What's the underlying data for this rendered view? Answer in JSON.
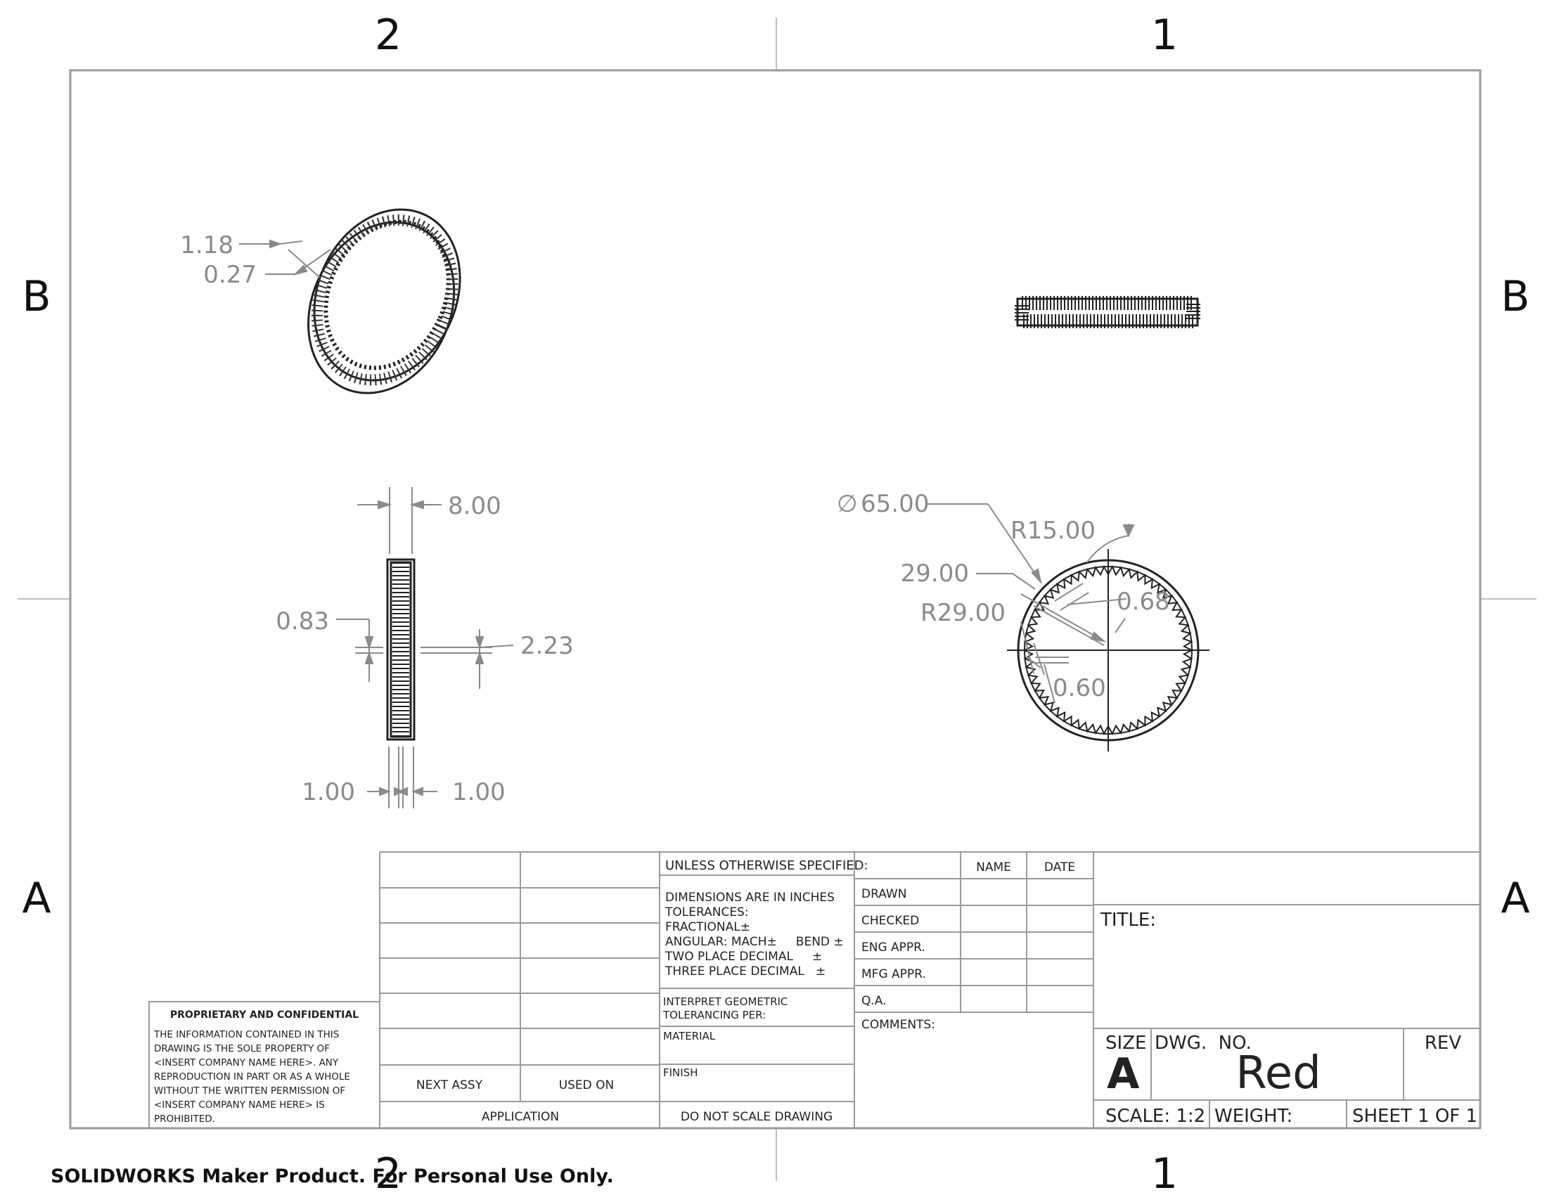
{
  "zones": {
    "col_left": "2",
    "col_right": "1",
    "row_top": "B",
    "row_bottom": "A"
  },
  "dimensions": {
    "iso_a": "1.18",
    "iso_b": "0.27",
    "width_top": "8.00",
    "tooth_left": "0.83",
    "tooth_right": "2.23",
    "bottom_left": "1.00",
    "bottom_right": "1.00",
    "diameter": "65.00",
    "diameter_symbol": "∅",
    "radius_15": "R15.00",
    "len_29": "29.00",
    "radius_29": "R29.00",
    "tooth_068": "0.68",
    "tooth_060": "0.60"
  },
  "title_block": {
    "next_assy": "NEXT ASSY",
    "used_on": "USED ON",
    "application": "APPLICATION",
    "unless": "UNLESS OTHERWISE SPECIFIED:",
    "dims_inches": "DIMENSIONS ARE IN INCHES",
    "tolerances": "TOLERANCES:",
    "fractional": "FRACTIONAL±",
    "angular": "ANGULAR: MACH±     BEND ±",
    "two_place": "TWO PLACE DECIMAL     ±",
    "three_place": "THREE PLACE DECIMAL   ±",
    "interpret": "INTERPRET GEOMETRIC",
    "tolerancing": "TOLERANCING PER:",
    "material": "MATERIAL",
    "finish": "FINISH",
    "do_not_scale": "DO NOT SCALE DRAWING",
    "name_hdr": "NAME",
    "date_hdr": "DATE",
    "drawn": "DRAWN",
    "checked": "CHECKED",
    "eng_appr": "ENG APPR.",
    "mfg_appr": "MFG APPR.",
    "qa": "Q.A.",
    "comments": "COMMENTS:",
    "title_label": "TITLE:",
    "size_label": "SIZE",
    "size_value": "A",
    "dwg_no_label": "DWG.  NO.",
    "dwg_no_value": "Red",
    "rev_label": "REV",
    "scale": "SCALE: 1:2",
    "weight": "WEIGHT:",
    "sheet": "SHEET 1 OF 1"
  },
  "proprietary": {
    "heading": "PROPRIETARY AND CONFIDENTIAL",
    "lines": [
      "THE INFORMATION CONTAINED IN THIS",
      "DRAWING IS THE SOLE PROPERTY OF",
      "<INSERT COMPANY NAME HERE>.  ANY",
      "REPRODUCTION IN PART OR AS A WHOLE",
      "WITHOUT THE WRITTEN PERMISSION OF",
      "<INSERT COMPANY NAME HERE> IS",
      "PROHIBITED."
    ]
  },
  "watermark": "SOLIDWORKS Maker Product. For Personal Use Only."
}
